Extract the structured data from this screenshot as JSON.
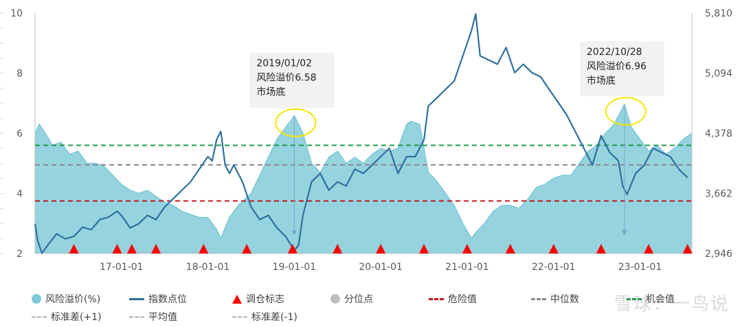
{
  "chart_data": {
    "type": "area",
    "left_axis": {
      "min": 2,
      "max": 10,
      "ticks": [
        "2",
        "4",
        "6",
        "8",
        "10"
      ]
    },
    "right_axis": {
      "min": 2946,
      "max": 5810,
      "ticks": [
        "2,946",
        "3,662",
        "4,378",
        "5,094",
        "5,810"
      ]
    },
    "x_ticks": [
      {
        "label": "17-01-01",
        "t": 2017.0
      },
      {
        "label": "18-01-01",
        "t": 2018.0
      },
      {
        "label": "19-01-01",
        "t": 2019.0
      },
      {
        "label": "20-01-01",
        "t": 2020.0
      },
      {
        "label": "21-01-01",
        "t": 2021.0
      },
      {
        "label": "22-01-01",
        "t": 2022.0
      },
      {
        "label": "23-01-01",
        "t": 2023.0
      }
    ],
    "x_range": [
      2016.0,
      2023.6
    ],
    "risk_premium": [
      [
        2016.0,
        6.0
      ],
      [
        2016.05,
        6.3
      ],
      [
        2016.12,
        6.0
      ],
      [
        2016.2,
        5.6
      ],
      [
        2016.3,
        5.7
      ],
      [
        2016.4,
        5.3
      ],
      [
        2016.5,
        5.4
      ],
      [
        2016.6,
        5.0
      ],
      [
        2016.7,
        5.0
      ],
      [
        2016.8,
        4.9
      ],
      [
        2016.9,
        4.6
      ],
      [
        2017.0,
        4.3
      ],
      [
        2017.1,
        4.1
      ],
      [
        2017.2,
        4.0
      ],
      [
        2017.3,
        4.1
      ],
      [
        2017.4,
        3.9
      ],
      [
        2017.5,
        3.7
      ],
      [
        2017.6,
        3.6
      ],
      [
        2017.7,
        3.4
      ],
      [
        2017.8,
        3.3
      ],
      [
        2017.9,
        3.2
      ],
      [
        2018.0,
        3.2
      ],
      [
        2018.1,
        2.8
      ],
      [
        2018.15,
        2.5
      ],
      [
        2018.25,
        3.2
      ],
      [
        2018.35,
        3.6
      ],
      [
        2018.5,
        4.0
      ],
      [
        2018.6,
        4.6
      ],
      [
        2018.7,
        5.2
      ],
      [
        2018.8,
        5.8
      ],
      [
        2018.9,
        6.2
      ],
      [
        2019.0,
        6.58
      ],
      [
        2019.1,
        6.0
      ],
      [
        2019.2,
        5.0
      ],
      [
        2019.3,
        4.7
      ],
      [
        2019.4,
        5.2
      ],
      [
        2019.5,
        5.4
      ],
      [
        2019.6,
        5.0
      ],
      [
        2019.7,
        5.2
      ],
      [
        2019.8,
        5.0
      ],
      [
        2019.9,
        5.3
      ],
      [
        2020.0,
        5.5
      ],
      [
        2020.1,
        5.4
      ],
      [
        2020.2,
        5.5
      ],
      [
        2020.3,
        6.3
      ],
      [
        2020.35,
        6.4
      ],
      [
        2020.45,
        6.3
      ],
      [
        2020.55,
        4.7
      ],
      [
        2020.65,
        4.4
      ],
      [
        2020.75,
        4.0
      ],
      [
        2020.85,
        3.6
      ],
      [
        2020.95,
        3.0
      ],
      [
        2021.05,
        2.5
      ],
      [
        2021.1,
        2.7
      ],
      [
        2021.2,
        3.0
      ],
      [
        2021.3,
        3.4
      ],
      [
        2021.4,
        3.6
      ],
      [
        2021.5,
        3.6
      ],
      [
        2021.6,
        3.5
      ],
      [
        2021.7,
        3.8
      ],
      [
        2021.8,
        4.2
      ],
      [
        2021.9,
        4.3
      ],
      [
        2022.0,
        4.5
      ],
      [
        2022.1,
        4.6
      ],
      [
        2022.2,
        4.6
      ],
      [
        2022.3,
        5.0
      ],
      [
        2022.4,
        5.4
      ],
      [
        2022.5,
        5.6
      ],
      [
        2022.6,
        6.0
      ],
      [
        2022.7,
        6.3
      ],
      [
        2022.82,
        6.96
      ],
      [
        2022.9,
        6.2
      ],
      [
        2023.0,
        5.8
      ],
      [
        2023.1,
        5.4
      ],
      [
        2023.2,
        5.6
      ],
      [
        2023.3,
        5.3
      ],
      [
        2023.4,
        5.5
      ],
      [
        2023.5,
        5.8
      ],
      [
        2023.6,
        6.0
      ]
    ],
    "index_points": [
      [
        2016.0,
        3300
      ],
      [
        2016.03,
        3100
      ],
      [
        2016.08,
        2950
      ],
      [
        2016.15,
        3050
      ],
      [
        2016.25,
        3180
      ],
      [
        2016.35,
        3120
      ],
      [
        2016.45,
        3150
      ],
      [
        2016.55,
        3260
      ],
      [
        2016.65,
        3230
      ],
      [
        2016.75,
        3350
      ],
      [
        2016.85,
        3380
      ],
      [
        2016.95,
        3450
      ],
      [
        2017.0,
        3400
      ],
      [
        2017.1,
        3250
      ],
      [
        2017.2,
        3300
      ],
      [
        2017.3,
        3400
      ],
      [
        2017.4,
        3350
      ],
      [
        2017.5,
        3500
      ],
      [
        2017.6,
        3600
      ],
      [
        2017.7,
        3700
      ],
      [
        2017.8,
        3800
      ],
      [
        2017.9,
        3950
      ],
      [
        2018.0,
        4100
      ],
      [
        2018.05,
        4050
      ],
      [
        2018.1,
        4300
      ],
      [
        2018.15,
        4400
      ],
      [
        2018.2,
        4000
      ],
      [
        2018.25,
        3900
      ],
      [
        2018.3,
        4000
      ],
      [
        2018.4,
        3800
      ],
      [
        2018.5,
        3500
      ],
      [
        2018.6,
        3350
      ],
      [
        2018.7,
        3400
      ],
      [
        2018.8,
        3250
      ],
      [
        2018.9,
        3150
      ],
      [
        2019.0,
        2980
      ],
      [
        2019.05,
        3050
      ],
      [
        2019.1,
        3400
      ],
      [
        2019.2,
        3800
      ],
      [
        2019.3,
        3900
      ],
      [
        2019.4,
        3700
      ],
      [
        2019.5,
        3800
      ],
      [
        2019.6,
        3750
      ],
      [
        2019.7,
        3950
      ],
      [
        2019.8,
        3900
      ],
      [
        2019.9,
        4000
      ],
      [
        2020.0,
        4100
      ],
      [
        2020.1,
        4200
      ],
      [
        2020.2,
        3900
      ],
      [
        2020.3,
        4100
      ],
      [
        2020.4,
        4100
      ],
      [
        2020.5,
        4300
      ],
      [
        2020.55,
        4700
      ],
      [
        2020.65,
        4800
      ],
      [
        2020.75,
        4900
      ],
      [
        2020.85,
        5000
      ],
      [
        2020.95,
        5300
      ],
      [
        2021.05,
        5600
      ],
      [
        2021.1,
        5800
      ],
      [
        2021.15,
        5300
      ],
      [
        2021.25,
        5250
      ],
      [
        2021.35,
        5200
      ],
      [
        2021.45,
        5400
      ],
      [
        2021.55,
        5100
      ],
      [
        2021.65,
        5200
      ],
      [
        2021.75,
        5100
      ],
      [
        2021.85,
        5050
      ],
      [
        2021.95,
        4900
      ],
      [
        2022.05,
        4750
      ],
      [
        2022.15,
        4600
      ],
      [
        2022.25,
        4400
      ],
      [
        2022.35,
        4200
      ],
      [
        2022.45,
        4000
      ],
      [
        2022.55,
        4350
      ],
      [
        2022.65,
        4150
      ],
      [
        2022.75,
        4050
      ],
      [
        2022.8,
        3750
      ],
      [
        2022.85,
        3650
      ],
      [
        2022.95,
        3900
      ],
      [
        2023.05,
        4000
      ],
      [
        2023.15,
        4200
      ],
      [
        2023.25,
        4150
      ],
      [
        2023.35,
        4100
      ],
      [
        2023.45,
        3950
      ],
      [
        2023.55,
        3850
      ]
    ],
    "rebalance_marks": [
      2016.45,
      2016.95,
      2017.12,
      2017.4,
      2017.95,
      2018.45,
      2018.98,
      2019.5,
      2020.0,
      2020.5,
      2021.0,
      2021.5,
      2022.0,
      2022.55,
      2023.1,
      2023.55
    ],
    "danger_value": 3.75,
    "median_value": 4.95,
    "opportunity_value": 5.6,
    "annotations": [
      {
        "t": 2019.0,
        "value": 6.58,
        "lines": [
          "2019/01/02",
          "风险溢价6.58",
          "市场底"
        ]
      },
      {
        "t": 2022.82,
        "value": 6.96,
        "lines": [
          "2022/10/28",
          "风险溢价6.96",
          "市场底"
        ]
      }
    ],
    "colors": {
      "area": "#8fd1dc",
      "area_line": "#7cc8d6",
      "index": "#2e6f9e",
      "triangle": "#ff0000",
      "danger": "#c0161c",
      "median": "#8c8c8c",
      "opportunity": "#1a9a4a",
      "quantile": "#bfbfbf",
      "circle": "#f2e600"
    }
  },
  "legend": {
    "row1": [
      {
        "label": "风险溢价(%)",
        "swatch": "circle",
        "color": "#7cc8d6"
      },
      {
        "label": "指数点位",
        "swatch": "line",
        "color": "#2e6f9e"
      },
      {
        "label": "调仓标志",
        "swatch": "triangle",
        "color": "#ff0000"
      },
      {
        "label": "分位点",
        "swatch": "circle",
        "color": "#bfbfbf"
      },
      {
        "label": "危险值",
        "swatch": "dash",
        "color": "#c0161c"
      },
      {
        "label": "中位数",
        "swatch": "dash",
        "color": "#8c8c8c"
      },
      {
        "label": "机会值",
        "swatch": "dash",
        "color": "#1a9a4a"
      }
    ],
    "row2": [
      {
        "label": "标准差(+1)",
        "swatch": "dash",
        "color": "#c8c8c8"
      },
      {
        "label": "平均值",
        "swatch": "dash",
        "color": "#c8c8c8"
      },
      {
        "label": "标准差(-1)",
        "swatch": "dash",
        "color": "#c8c8c8"
      }
    ]
  },
  "watermark": "雪球：一鸟说"
}
